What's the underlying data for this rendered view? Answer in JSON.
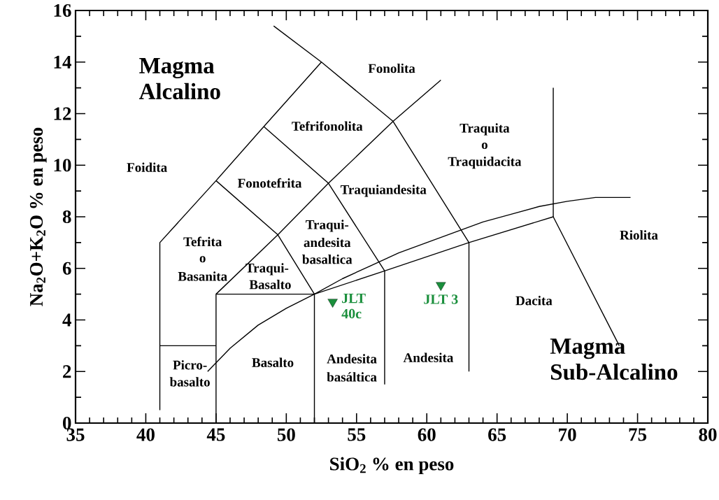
{
  "chart_data": {
    "type": "line",
    "xlabel": "SiO$_{2}$ % en peso",
    "ylabel": "Na$_{2}$O+K$_{2}$O  % en peso",
    "xlim": [
      35,
      80
    ],
    "ylim": [
      0,
      16
    ],
    "xticks": [
      35,
      40,
      45,
      50,
      55,
      60,
      65,
      70,
      75,
      80
    ],
    "yticks": [
      0,
      2,
      4,
      6,
      8,
      10,
      12,
      14,
      16
    ],
    "grid": false,
    "legend": false,
    "series": [
      {
        "color": "#000000",
        "x": [
          41,
          41,
          45,
          48.4,
          52.5,
          57.6,
          63,
          69,
          73.7
        ],
        "values": [
          0.5,
          7,
          9.4,
          11.5,
          14,
          11.7,
          7,
          8,
          3
        ]
      },
      {
        "color": "#000000",
        "x": [
          49.1,
          52.5
        ],
        "values": [
          15.4,
          14
        ]
      },
      {
        "color": "#000000",
        "x": [
          41,
          45
        ],
        "values": [
          3,
          3
        ]
      },
      {
        "color": "#000000",
        "x": [
          45,
          45,
          52,
          57,
          63,
          63
        ],
        "values": [
          0,
          5,
          5,
          5.9,
          7,
          2
        ]
      },
      {
        "color": "#000000",
        "x": [
          45,
          49.4,
          53,
          57.6,
          61
        ],
        "values": [
          9.4,
          7.3,
          9.3,
          11.7,
          13.3
        ]
      },
      {
        "color": "#000000",
        "x": [
          48.4,
          53,
          57,
          57
        ],
        "values": [
          11.5,
          9.3,
          5.9,
          1.5
        ]
      },
      {
        "color": "#000000",
        "x": [
          45,
          49.4
        ],
        "values": [
          5,
          7.3
        ]
      },
      {
        "color": "#000000",
        "x": [
          49.4,
          52,
          52
        ],
        "values": [
          7.3,
          5,
          0
        ]
      },
      {
        "color": "#000000",
        "x": [
          69,
          69
        ],
        "values": [
          8,
          13
        ]
      },
      {
        "color": "#000000",
        "x": [
          44.4,
          46,
          48,
          50,
          52,
          54,
          56,
          58,
          60,
          62,
          64,
          66,
          68,
          70,
          72,
          73,
          74.5
        ],
        "values": [
          2,
          2.9,
          3.8,
          4.45,
          5,
          5.6,
          6.1,
          6.6,
          7,
          7.4,
          7.8,
          8.1,
          8.4,
          8.6,
          8.75,
          8.75,
          8.75
        ]
      },
      {
        "type": "scatter",
        "name": "JLT 40c",
        "color": "#1a8f3c",
        "marker": "triangle",
        "x": [
          53.3
        ],
        "values": [
          4.7
        ]
      },
      {
        "type": "scatter",
        "name": "JLT 3",
        "color": "#1a8f3c",
        "marker": "triangle",
        "x": [
          61.0
        ],
        "values": [
          5.35
        ]
      }
    ],
    "annotations": [
      "Magma Alcalino",
      "Magma Sub-Alcalino",
      "Foidita",
      "Fonolita",
      "Tefrifonolita",
      "Fonotefrita",
      "Traquiandesita",
      "Traqui-",
      "andesita",
      "basaltica",
      "Tefrita",
      "o",
      "Basanita",
      "Traqui-",
      "Basalto",
      "Picro-",
      "basalto",
      "Basalto",
      "Andesita",
      "basáltica",
      "Andesita",
      "Traquita",
      "o",
      "Traquidacita",
      "Dacita",
      "Riolita"
    ]
  }
}
